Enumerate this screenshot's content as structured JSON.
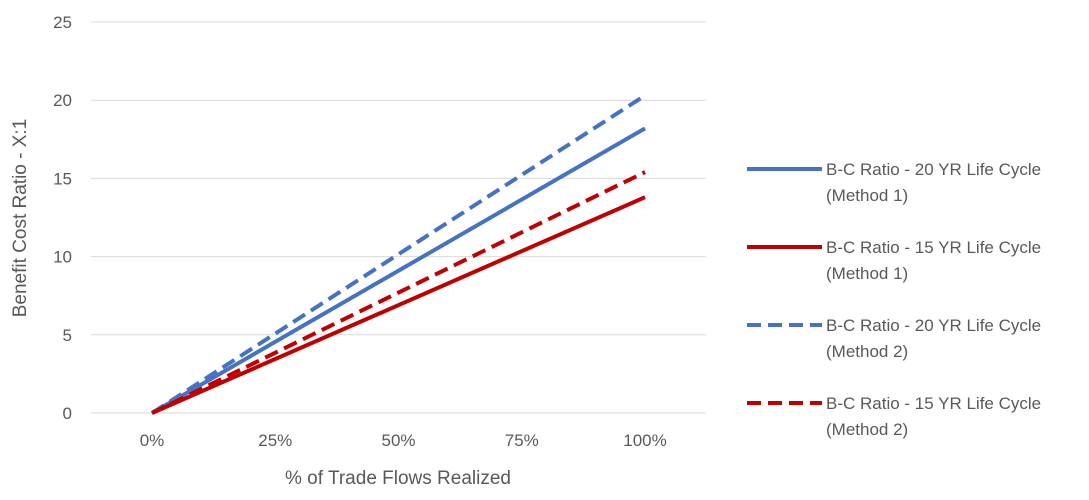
{
  "chart_data": {
    "type": "line",
    "title": "",
    "xlabel": "% of Trade Flows Realized",
    "ylabel": "Benefit Cost Ratio - X:1",
    "xlim": [
      0,
      1
    ],
    "ylim": [
      0,
      25
    ],
    "x_ticks": [
      "0%",
      "25%",
      "50%",
      "75%",
      "100%"
    ],
    "y_ticks": [
      "0",
      "5",
      "10",
      "15",
      "20",
      "25"
    ],
    "grid": "horizontal",
    "legend_position": "right",
    "series": [
      {
        "name": "B-C Ratio - 20 YR Life Cycle (Method 1)",
        "label_lines": [
          "B-C Ratio - 20 YR Life Cycle",
          "(Method 1)"
        ],
        "color": "#4472C4",
        "dash": "solid",
        "x": [
          0,
          1
        ],
        "values": [
          0,
          18.2
        ]
      },
      {
        "name": "B-C Ratio - 15 YR Life Cycle (Method 1)",
        "label_lines": [
          "B-C Ratio - 15 YR Life Cycle",
          "(Method 1)"
        ],
        "color": "#C00000",
        "dash": "solid",
        "x": [
          0,
          1
        ],
        "values": [
          0,
          13.8
        ]
      },
      {
        "name": "B-C Ratio - 20 YR Life Cycle (Method 2)",
        "label_lines": [
          "B-C Ratio - 20 YR Life Cycle",
          "(Method 2)"
        ],
        "color": "#4472C4",
        "dash": "dashed",
        "x": [
          0,
          1
        ],
        "values": [
          0,
          20.3
        ]
      },
      {
        "name": "B-C Ratio - 15 YR Life Cycle (Method 2)",
        "label_lines": [
          "B-C Ratio - 15 YR Life Cycle",
          "(Method 2)"
        ],
        "color": "#C00000",
        "dash": "dashed",
        "x": [
          0,
          1
        ],
        "values": [
          0,
          15.4
        ]
      }
    ]
  }
}
